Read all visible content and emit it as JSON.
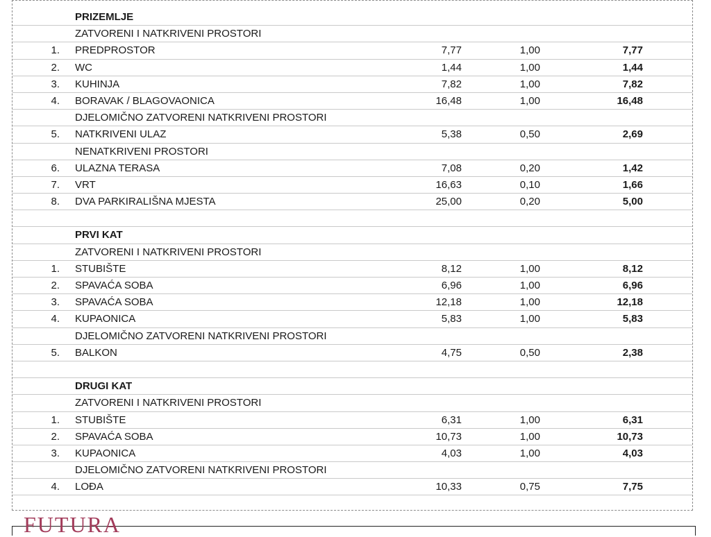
{
  "rows": [
    {
      "type": "section",
      "name": "PRIZEMLJE"
    },
    {
      "type": "group",
      "name": "ZATVORENI I NATKRIVENI PROSTORI"
    },
    {
      "type": "item",
      "no": "1.",
      "name": "PREDPROSTOR",
      "area": "7,77",
      "coef": "1,00",
      "total": "7,77"
    },
    {
      "type": "item",
      "no": "2.",
      "name": "WC",
      "area": "1,44",
      "coef": "1,00",
      "total": "1,44"
    },
    {
      "type": "item",
      "no": "3.",
      "name": "KUHINJA",
      "area": "7,82",
      "coef": "1,00",
      "total": "7,82"
    },
    {
      "type": "item",
      "no": "4.",
      "name": "BORAVAK / BLAGOVAONICA",
      "area": "16,48",
      "coef": "1,00",
      "total": "16,48"
    },
    {
      "type": "group",
      "name": "DJELOMIČNO ZATVORENI NATKRIVENI PROSTORI"
    },
    {
      "type": "item",
      "no": "5.",
      "name": "NATKRIVENI ULAZ",
      "area": "5,38",
      "coef": "0,50",
      "total": "2,69"
    },
    {
      "type": "group",
      "name": "NENATKRIVENI PROSTORI"
    },
    {
      "type": "item",
      "no": "6.",
      "name": "ULAZNA TERASA",
      "area": "7,08",
      "coef": "0,20",
      "total": "1,42"
    },
    {
      "type": "item",
      "no": "7.",
      "name": "VRT",
      "area": "16,63",
      "coef": "0,10",
      "total": "1,66"
    },
    {
      "type": "item",
      "no": "8.",
      "name": "DVA PARKIRALIŠNA MJESTA",
      "area": "25,00",
      "coef": "0,20",
      "total": "5,00"
    },
    {
      "type": "blank"
    },
    {
      "type": "section",
      "name": "PRVI KAT"
    },
    {
      "type": "group",
      "name": "ZATVORENI I NATKRIVENI PROSTORI"
    },
    {
      "type": "item",
      "no": "1.",
      "name": "STUBIŠTE",
      "area": "8,12",
      "coef": "1,00",
      "total": "8,12"
    },
    {
      "type": "item",
      "no": "2.",
      "name": "SPAVAĆA SOBA",
      "area": "6,96",
      "coef": "1,00",
      "total": "6,96"
    },
    {
      "type": "item",
      "no": "3.",
      "name": "SPAVAĆA SOBA",
      "area": "12,18",
      "coef": "1,00",
      "total": "12,18"
    },
    {
      "type": "item",
      "no": "4.",
      "name": "KUPAONICA",
      "area": "5,83",
      "coef": "1,00",
      "total": "5,83"
    },
    {
      "type": "group",
      "name": "DJELOMIČNO ZATVORENI NATKRIVENI PROSTORI"
    },
    {
      "type": "item",
      "no": "5.",
      "name": "BALKON",
      "area": "4,75",
      "coef": "0,50",
      "total": "2,38"
    },
    {
      "type": "blank"
    },
    {
      "type": "section",
      "name": "DRUGI KAT"
    },
    {
      "type": "group",
      "name": "ZATVORENI I NATKRIVENI PROSTORI"
    },
    {
      "type": "item",
      "no": "1.",
      "name": "STUBIŠTE",
      "area": "6,31",
      "coef": "1,00",
      "total": "6,31"
    },
    {
      "type": "item",
      "no": "2.",
      "name": "SPAVAĆA SOBA",
      "area": "10,73",
      "coef": "1,00",
      "total": "10,73"
    },
    {
      "type": "item",
      "no": "3.",
      "name": "KUPAONICA",
      "area": "4,03",
      "coef": "1,00",
      "total": "4,03"
    },
    {
      "type": "group",
      "name": "DJELOMIČNO ZATVORENI NATKRIVENI PROSTORI"
    },
    {
      "type": "item",
      "no": "4.",
      "name": "LOĐA",
      "area": "10,33",
      "coef": "0,75",
      "total": "7,75"
    }
  ],
  "logo": {
    "text": "FUTURA",
    "color": "#a23b5a"
  }
}
